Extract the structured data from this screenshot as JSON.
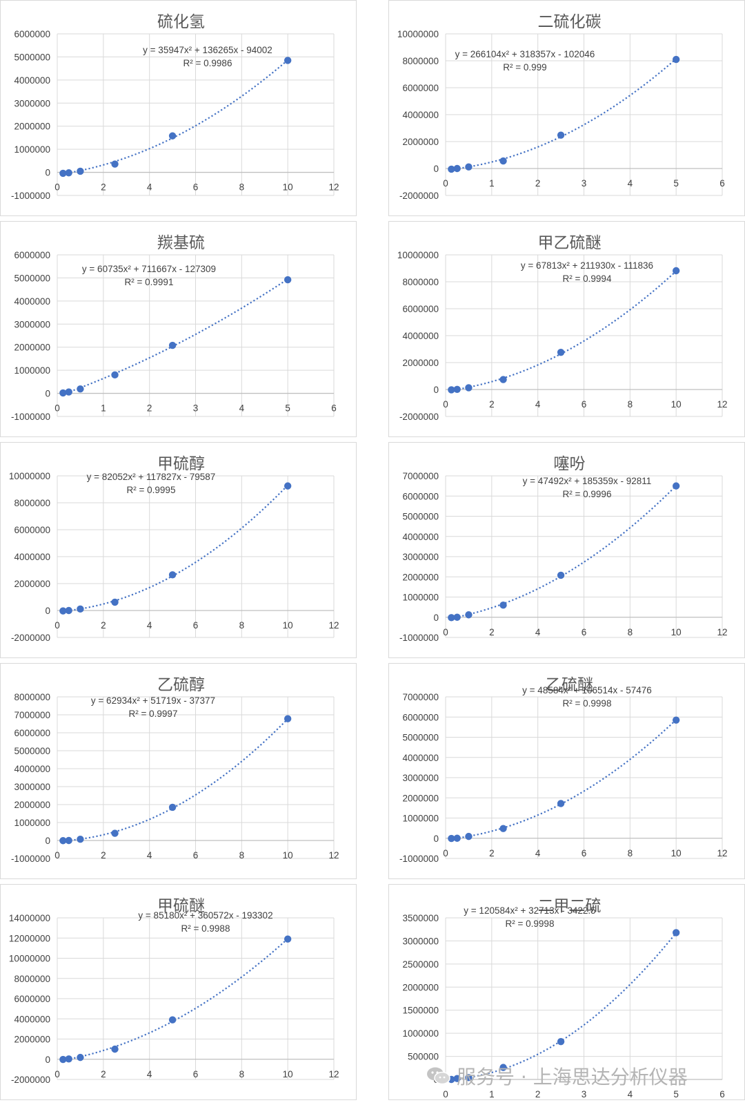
{
  "colors": {
    "marker": "#4472c4",
    "trend": "#4472c4",
    "grid": "#d9d9d9",
    "axis": "#bfbfbf",
    "text": "#404040",
    "title": "#595959"
  },
  "watermark": {
    "icon": "wechat-icon",
    "text": "服务号 · 上海思达分析仪器"
  },
  "chart_data": [
    {
      "type": "scatter",
      "title": "硫化氢",
      "equation": "y = 35947x² + 136265x - 94002",
      "r2": "R² = 0.9986",
      "coef": [
        35947,
        136265,
        -94002
      ],
      "x": [
        0.25,
        0.5,
        1,
        2.5,
        5,
        10
      ],
      "y": [
        -40000,
        -20000,
        50000,
        360000,
        1580000,
        4850000
      ],
      "xlim": [
        0,
        12
      ],
      "ylim": [
        -1000000,
        6000000
      ],
      "xticks": [
        0,
        2,
        4,
        6,
        8,
        10,
        12
      ],
      "yticks": [
        -1000000,
        0,
        1000000,
        2000000,
        3000000,
        4000000,
        5000000,
        6000000
      ],
      "grid": true,
      "legend": "none"
    },
    {
      "type": "scatter",
      "title": "二硫化碳",
      "equation": "y = 266104x² + 318357x - 102046",
      "r2": "R² = 0.999",
      "coef": [
        266104,
        318357,
        -102046
      ],
      "x": [
        0.125,
        0.25,
        0.5,
        1.25,
        2.5,
        5
      ],
      "y": [
        -50000,
        0,
        120000,
        560000,
        2480000,
        8100000
      ],
      "xlim": [
        0,
        6
      ],
      "ylim": [
        -2000000,
        10000000
      ],
      "xticks": [
        0,
        1,
        2,
        3,
        4,
        5,
        6
      ],
      "yticks": [
        -2000000,
        0,
        2000000,
        4000000,
        6000000,
        8000000,
        10000000
      ],
      "grid": true,
      "legend": "none"
    },
    {
      "type": "scatter",
      "title": "羰基硫",
      "equation": "y = 60735x² + 711667x - 127309",
      "r2": "R² = 0.9991",
      "coef": [
        60735,
        711667,
        -127309
      ],
      "x": [
        0.125,
        0.25,
        0.5,
        1.25,
        2.5,
        5
      ],
      "y": [
        20000,
        60000,
        190000,
        800000,
        2080000,
        4920000
      ],
      "xlim": [
        0,
        6
      ],
      "ylim": [
        -1000000,
        6000000
      ],
      "xticks": [
        0,
        1,
        2,
        3,
        4,
        5,
        6
      ],
      "yticks": [
        -1000000,
        0,
        1000000,
        2000000,
        3000000,
        4000000,
        5000000,
        6000000
      ],
      "grid": true,
      "legend": "none"
    },
    {
      "type": "scatter",
      "title": "甲乙硫醚",
      "equation": "y = 67813x² + 211930x - 111836",
      "r2": "R² = 0.9994",
      "coef": [
        67813,
        211930,
        -111836
      ],
      "x": [
        0.25,
        0.5,
        1,
        2.5,
        5,
        10
      ],
      "y": [
        -20000,
        10000,
        130000,
        740000,
        2760000,
        8820000
      ],
      "xlim": [
        0,
        12
      ],
      "ylim": [
        -2000000,
        10000000
      ],
      "xticks": [
        0,
        2,
        4,
        6,
        8,
        10,
        12
      ],
      "yticks": [
        -2000000,
        0,
        2000000,
        4000000,
        6000000,
        8000000,
        10000000
      ],
      "grid": true,
      "legend": "none"
    },
    {
      "type": "scatter",
      "title": "甲硫醇",
      "equation": "y = 82052x² + 117827x - 79587",
      "r2": "R² = 0.9995",
      "coef": [
        82052,
        117827,
        -79587
      ],
      "x": [
        0.25,
        0.5,
        1,
        2.5,
        5,
        10
      ],
      "y": [
        -30000,
        0,
        110000,
        620000,
        2650000,
        9250000
      ],
      "xlim": [
        0,
        12
      ],
      "ylim": [
        -2000000,
        10000000
      ],
      "xticks": [
        0,
        2,
        4,
        6,
        8,
        10,
        12
      ],
      "yticks": [
        -2000000,
        0,
        2000000,
        4000000,
        6000000,
        8000000,
        10000000
      ],
      "grid": true,
      "legend": "none"
    },
    {
      "type": "scatter",
      "title": "噻吩",
      "equation": "y = 47492x² + 185359x - 92811",
      "r2": "R² = 0.9996",
      "coef": [
        47492,
        185359,
        -92811
      ],
      "x": [
        0.25,
        0.5,
        1,
        2.5,
        5,
        10
      ],
      "y": [
        -20000,
        0,
        120000,
        600000,
        2080000,
        6500000
      ],
      "xlim": [
        0,
        12
      ],
      "ylim": [
        -1000000,
        7000000
      ],
      "xticks": [
        0,
        2,
        4,
        6,
        8,
        10,
        12
      ],
      "yticks": [
        -1000000,
        0,
        1000000,
        2000000,
        3000000,
        4000000,
        5000000,
        6000000,
        7000000
      ],
      "grid": true,
      "legend": "none"
    },
    {
      "type": "scatter",
      "title": "乙硫醇",
      "equation": "y = 62934x² + 51719x - 37377",
      "r2": "R² = 0.9997",
      "coef": [
        62934,
        51719,
        -37377
      ],
      "x": [
        0.25,
        0.5,
        1,
        2.5,
        5,
        10
      ],
      "y": [
        -10000,
        0,
        70000,
        400000,
        1850000,
        6780000
      ],
      "xlim": [
        0,
        12
      ],
      "ylim": [
        -1000000,
        8000000
      ],
      "xticks": [
        0,
        2,
        4,
        6,
        8,
        10,
        12
      ],
      "yticks": [
        -1000000,
        0,
        1000000,
        2000000,
        3000000,
        4000000,
        5000000,
        6000000,
        7000000,
        8000000
      ],
      "grid": true,
      "legend": "none"
    },
    {
      "type": "scatter",
      "title": "乙硫醚",
      "equation": "y = 48584x² + 106514x - 57476",
      "r2": "R² = 0.9998",
      "coef": [
        48584,
        106514,
        -57476
      ],
      "x": [
        0.25,
        0.5,
        1,
        2.5,
        5,
        10
      ],
      "y": [
        -10000,
        0,
        90000,
        480000,
        1720000,
        5850000
      ],
      "xlim": [
        0,
        12
      ],
      "ylim": [
        -1000000,
        7000000
      ],
      "xticks": [
        0,
        2,
        4,
        6,
        8,
        10,
        12
      ],
      "yticks": [
        -1000000,
        0,
        1000000,
        2000000,
        3000000,
        4000000,
        5000000,
        6000000,
        7000000
      ],
      "grid": true,
      "legend": "none"
    },
    {
      "type": "scatter",
      "title": "甲硫醚",
      "equation": "y = 85180x² + 360572x - 193302",
      "r2": "R² = 0.9988",
      "coef": [
        85180,
        360572,
        -193302
      ],
      "x": [
        0.25,
        0.5,
        1,
        2.5,
        5,
        10
      ],
      "y": [
        -20000,
        30000,
        180000,
        1000000,
        3900000,
        11900000
      ],
      "xlim": [
        0,
        12
      ],
      "ylim": [
        -2000000,
        14000000
      ],
      "xticks": [
        0,
        2,
        4,
        6,
        8,
        10,
        12
      ],
      "yticks": [
        -2000000,
        0,
        2000000,
        4000000,
        6000000,
        8000000,
        10000000,
        12000000,
        14000000
      ],
      "grid": true,
      "legend": "none"
    },
    {
      "type": "scatter",
      "title": "二甲二硫",
      "equation": "y = 120584x² + 32713x - 3422.5",
      "r2": "R² = 0.9998",
      "coef": [
        120584,
        32713,
        -3422.5
      ],
      "x": [
        0.125,
        0.25,
        0.5,
        1.25,
        2.5,
        5
      ],
      "y": [
        0,
        20000,
        40000,
        260000,
        820000,
        3180000
      ],
      "xlim": [
        0,
        6
      ],
      "ylim": [
        0,
        3500000
      ],
      "xticks": [
        0,
        1,
        2,
        3,
        4,
        5,
        6
      ],
      "yticks": [
        0,
        500000,
        1000000,
        1500000,
        2000000,
        2500000,
        3000000,
        3500000
      ],
      "grid": true,
      "legend": "none"
    }
  ]
}
